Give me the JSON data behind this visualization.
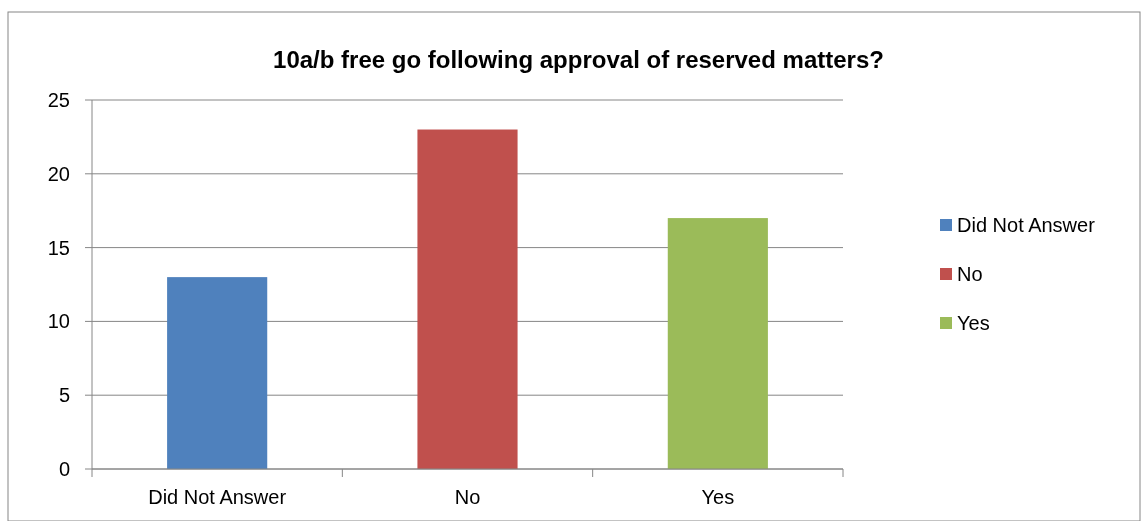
{
  "chart_data": {
    "type": "bar",
    "title": "10a/b free go following approval of reserved matters?",
    "categories": [
      "Did Not Answer",
      "No",
      "Yes"
    ],
    "stacked": true,
    "series": [
      {
        "name": "Did Not Answer",
        "color": "#4f81bd",
        "values": [
          13,
          null,
          null
        ]
      },
      {
        "name": "No",
        "color": "#c0504d",
        "values": [
          null,
          23,
          null
        ]
      },
      {
        "name": "Yes",
        "color": "#9bbb59",
        "values": [
          null,
          null,
          17
        ]
      }
    ],
    "ylim": [
      0,
      25
    ],
    "yticks": [
      0,
      5,
      10,
      15,
      20,
      25
    ],
    "grid": "y",
    "legend": "right"
  }
}
